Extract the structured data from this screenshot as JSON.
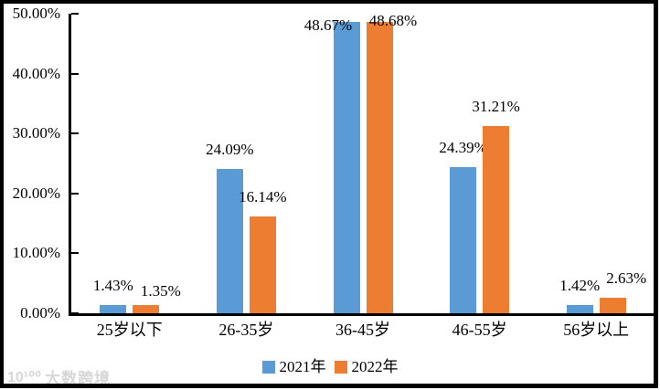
{
  "chart_data": {
    "type": "bar",
    "title": "",
    "categories": [
      "25岁以下",
      "26-35岁",
      "36-45岁",
      "46-55岁",
      "56岁以上"
    ],
    "series": [
      {
        "name": "2021年",
        "color": "#5B9BD5",
        "values": [
          1.43,
          24.09,
          48.67,
          24.39,
          1.42
        ],
        "labels": [
          "1.43%",
          "24.09%",
          "48.67%",
          "24.39%",
          "1.42%"
        ]
      },
      {
        "name": "2022年",
        "color": "#ED7D31",
        "values": [
          1.35,
          16.14,
          48.68,
          31.21,
          2.63
        ],
        "labels": [
          "1.35%",
          "16.14%",
          "48.68%",
          "31.21%",
          "2.63%"
        ]
      }
    ],
    "xlabel": "",
    "ylabel": "",
    "ylim": [
      0,
      50
    ],
    "ytick_step": 10,
    "y_axis_tick_labels": [
      "0.00%",
      "10.00%",
      "20.00%",
      "30.00%",
      "40.00%",
      "50.00%"
    ],
    "grid": false,
    "legend_position": "bottom",
    "label_offsets": [
      [
        [
          0,
          0
        ],
        [
          0,
          0
        ],
        [
          -20,
          25
        ],
        [
          0,
          0
        ],
        [
          0,
          0
        ]
      ],
      [
        [
          16,
          6
        ],
        [
          0,
          0
        ],
        [
          15,
          20
        ],
        [
          0,
          0
        ],
        [
          15,
          0
        ]
      ]
    ],
    "axis_color": "#000000",
    "data_label_color": "#000000"
  },
  "watermark": {
    "logo": "10¹⁰⁰",
    "text": "大数跨境"
  }
}
